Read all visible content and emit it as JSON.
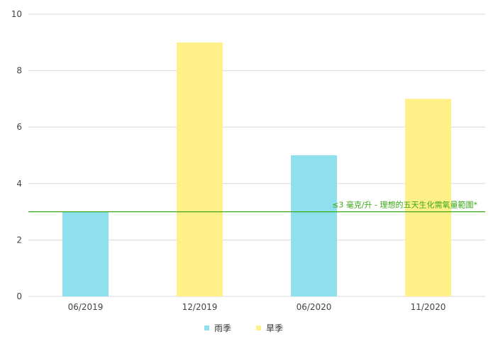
{
  "chart_data": {
    "type": "bar",
    "categories": [
      "06/2019",
      "12/2019",
      "06/2020",
      "11/2020"
    ],
    "values": [
      3,
      9,
      5,
      7
    ],
    "bar_series": [
      0,
      1,
      0,
      1
    ],
    "series": [
      {
        "name": "雨季",
        "color": "#8de0ec"
      },
      {
        "name": "旱季",
        "color": "#fff08a"
      }
    ],
    "ylim": [
      0,
      10
    ],
    "yticks": [
      0,
      2,
      4,
      6,
      8,
      10
    ],
    "grid": true,
    "legend_position": "bottom-center",
    "reference_line": {
      "value": 3,
      "label": "≤3 毫克/升 - 理想的五天生化需氧量範圍*",
      "color": "#3aa817"
    },
    "title": "",
    "xlabel": "",
    "ylabel": ""
  }
}
